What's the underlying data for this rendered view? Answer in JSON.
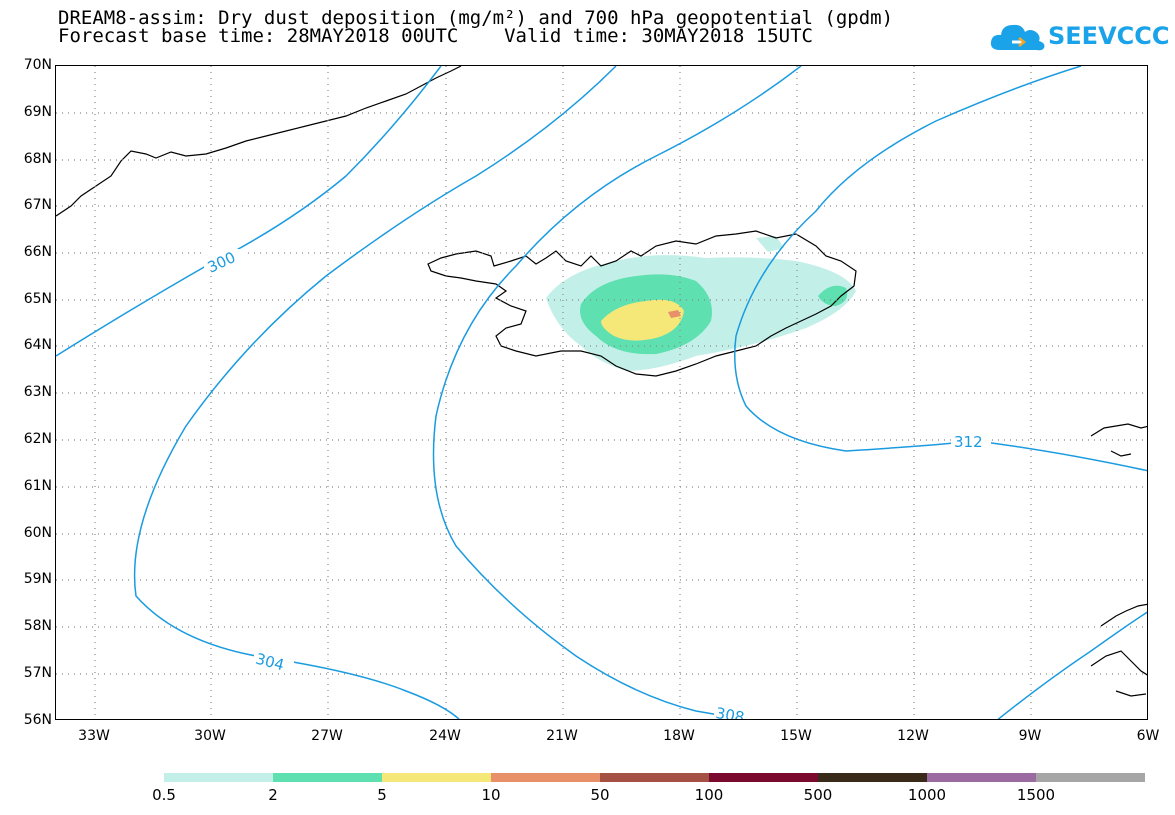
{
  "header": {
    "line1": "DREAM8-assim: Dry dust deposition (mg/m²) and 700 hPa geopotential (gpdm)",
    "line2": "Forecast base time: 28MAY2018 00UTC    Valid time: 30MAY2018 15UTC"
  },
  "logo": {
    "text": "SEEVCCC",
    "icon": "cloud-icon"
  },
  "axes": {
    "lat_labels": [
      "70N",
      "69N",
      "68N",
      "67N",
      "66N",
      "65N",
      "64N",
      "63N",
      "62N",
      "61N",
      "60N",
      "59N",
      "58N",
      "57N",
      "56N"
    ],
    "lon_labels": [
      "33W",
      "30W",
      "27W",
      "24W",
      "21W",
      "18W",
      "15W",
      "12W",
      "9W",
      "6W"
    ],
    "lat_range": [
      56,
      70
    ],
    "lon_range": [
      -34.3,
      -6
    ]
  },
  "contours": {
    "color": "#1a9be0",
    "labels": [
      "300",
      "304",
      "308",
      "312"
    ]
  },
  "legend": {
    "labels": [
      "0.5",
      "2",
      "5",
      "10",
      "50",
      "100",
      "500",
      "1000",
      "1500"
    ],
    "colors": [
      "#c2f0e8",
      "#5ee0b0",
      "#f5e878",
      "#e8906a",
      "#a45042",
      "#7a0a2e",
      "#3a2a1a",
      "#9a6aa0",
      "#a6a6a6"
    ]
  }
}
